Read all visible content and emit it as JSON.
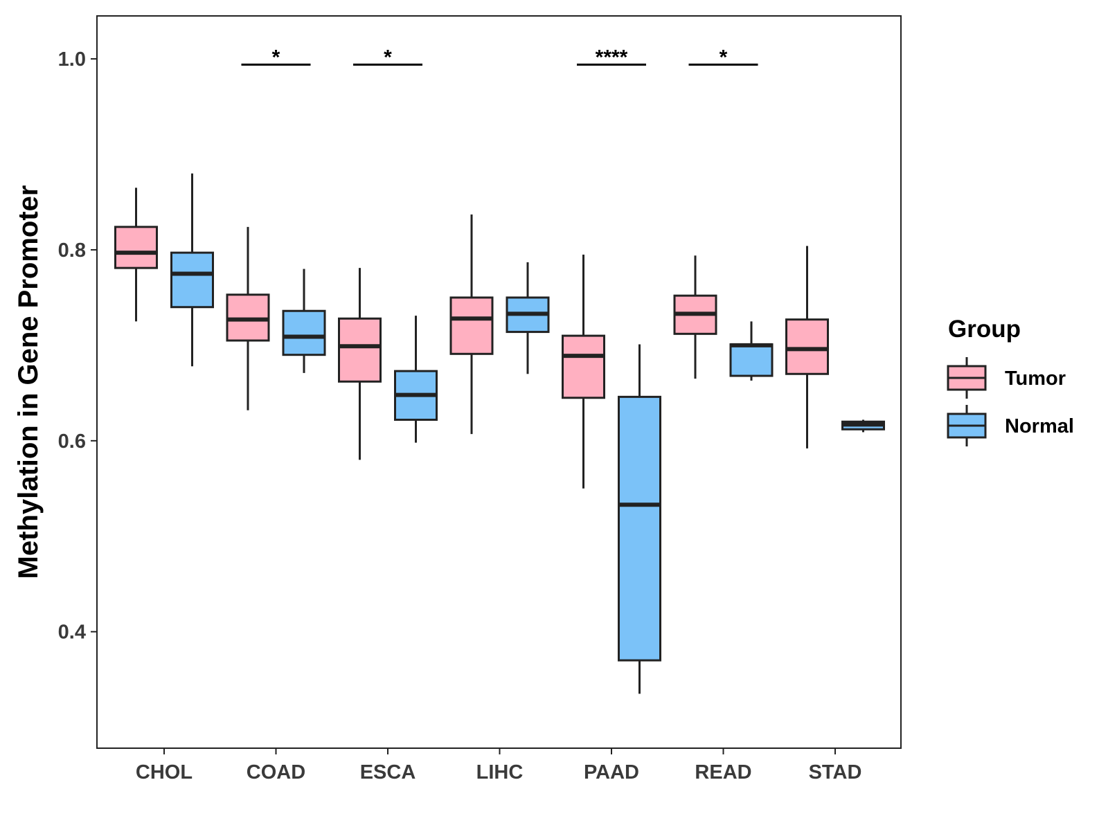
{
  "chart_data": {
    "type": "boxplot",
    "title": "",
    "xlabel": "",
    "ylabel": "Methylation in Gene Promoter",
    "ylim": [
      0.278,
      1.045
    ],
    "yticks": [
      0.4,
      0.6,
      0.8,
      1.0
    ],
    "ytick_labels": [
      "0.4",
      "0.6",
      "0.8",
      "1.0"
    ],
    "grid": false,
    "categories": [
      "CHOL",
      "COAD",
      "ESCA",
      "LIHC",
      "PAAD",
      "READ",
      "STAD"
    ],
    "legend": {
      "title": "Group",
      "position": "right",
      "entries": [
        {
          "name": "Tumor",
          "color": "#FFB0C1"
        },
        {
          "name": "Normal",
          "color": "#7BC2F8"
        }
      ]
    },
    "series": [
      {
        "name": "Tumor",
        "color": "#FFB0C1",
        "boxes": [
          {
            "category": "CHOL",
            "min": 0.725,
            "q1": 0.781,
            "median": 0.797,
            "q3": 0.824,
            "max": 0.865
          },
          {
            "category": "COAD",
            "min": 0.632,
            "q1": 0.705,
            "median": 0.727,
            "q3": 0.753,
            "max": 0.824
          },
          {
            "category": "ESCA",
            "min": 0.58,
            "q1": 0.662,
            "median": 0.699,
            "q3": 0.728,
            "max": 0.781
          },
          {
            "category": "LIHC",
            "min": 0.607,
            "q1": 0.691,
            "median": 0.728,
            "q3": 0.75,
            "max": 0.837
          },
          {
            "category": "PAAD",
            "min": 0.55,
            "q1": 0.645,
            "median": 0.689,
            "q3": 0.71,
            "max": 0.795
          },
          {
            "category": "READ",
            "min": 0.665,
            "q1": 0.712,
            "median": 0.733,
            "q3": 0.752,
            "max": 0.794
          },
          {
            "category": "STAD",
            "min": 0.592,
            "q1": 0.67,
            "median": 0.696,
            "q3": 0.727,
            "max": 0.804
          }
        ]
      },
      {
        "name": "Normal",
        "color": "#7BC2F8",
        "boxes": [
          {
            "category": "CHOL",
            "min": 0.678,
            "q1": 0.74,
            "median": 0.775,
            "q3": 0.797,
            "max": 0.88
          },
          {
            "category": "COAD",
            "min": 0.671,
            "q1": 0.69,
            "median": 0.709,
            "q3": 0.736,
            "max": 0.78
          },
          {
            "category": "ESCA",
            "min": 0.598,
            "q1": 0.622,
            "median": 0.648,
            "q3": 0.673,
            "max": 0.731
          },
          {
            "category": "LIHC",
            "min": 0.67,
            "q1": 0.714,
            "median": 0.733,
            "q3": 0.75,
            "max": 0.787
          },
          {
            "category": "PAAD",
            "min": 0.335,
            "q1": 0.37,
            "median": 0.533,
            "q3": 0.646,
            "max": 0.701
          },
          {
            "category": "READ",
            "min": 0.663,
            "q1": 0.668,
            "median": 0.7,
            "q3": 0.701,
            "max": 0.725
          },
          {
            "category": "STAD",
            "min": 0.609,
            "q1": 0.612,
            "median": 0.617,
            "q3": 0.62,
            "max": 0.622
          }
        ]
      }
    ],
    "annotations": [
      {
        "category": "COAD",
        "label": "*",
        "y": 0.994
      },
      {
        "category": "ESCA",
        "label": "*",
        "y": 0.994
      },
      {
        "category": "PAAD",
        "label": "****",
        "y": 0.994
      },
      {
        "category": "READ",
        "label": "*",
        "y": 0.994
      }
    ]
  }
}
